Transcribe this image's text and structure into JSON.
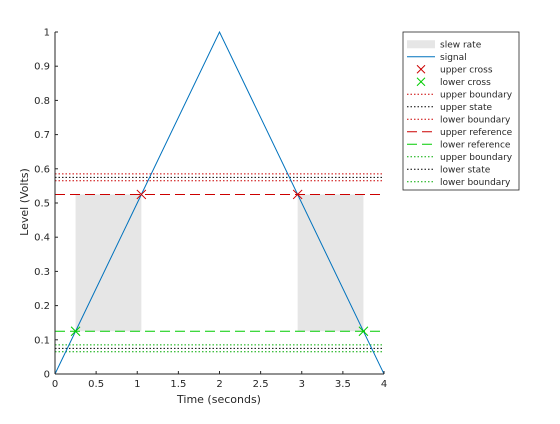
{
  "chart_data": {
    "type": "line",
    "title": "",
    "xlabel": "Time (seconds)",
    "ylabel": "Level (Volts)",
    "xlim": [
      0,
      4
    ],
    "ylim": [
      0,
      1
    ],
    "xticks": [
      0,
      0.5,
      1,
      1.5,
      2,
      2.5,
      3,
      3.5,
      4
    ],
    "xtick_labels": [
      "0",
      "0.5",
      "1",
      "1.5",
      "2",
      "2.5",
      "3",
      "3.5",
      "4"
    ],
    "yticks": [
      0,
      0.1,
      0.2,
      0.3,
      0.4,
      0.5,
      0.6,
      0.7,
      0.8,
      0.9,
      1
    ],
    "ytick_labels": [
      "0",
      "0.1",
      "0.2",
      "0.3",
      "0.4",
      "0.5",
      "0.6",
      "0.7",
      "0.8",
      "0.9",
      "1"
    ],
    "grid": false,
    "legend_position": "outside-top-right",
    "shaded_regions": [
      {
        "x0": 0.25,
        "x1": 1.05,
        "y0": 0.125,
        "y1": 0.525
      },
      {
        "x0": 2.95,
        "x1": 3.75,
        "y0": 0.125,
        "y1": 0.525
      }
    ],
    "signal": {
      "x": [
        0,
        2,
        4
      ],
      "y": [
        0,
        1,
        0
      ]
    },
    "upper_cross": {
      "x": [
        1.05,
        2.95
      ],
      "y": [
        0.525,
        0.525
      ]
    },
    "lower_cross": {
      "x": [
        0.25,
        3.75
      ],
      "y": [
        0.125,
        0.125
      ]
    },
    "hlines": [
      {
        "key": "upper_boundary",
        "y": 0.585,
        "color": "#cc0000",
        "style": "dotted"
      },
      {
        "key": "upper_state",
        "y": 0.575,
        "color": "#000000",
        "style": "dotted"
      },
      {
        "key": "lower_boundary_upper",
        "y": 0.565,
        "color": "#cc0000",
        "style": "dotted"
      },
      {
        "key": "upper_reference",
        "y": 0.525,
        "color": "#cc0000",
        "style": "dashed"
      },
      {
        "key": "lower_reference",
        "y": 0.125,
        "color": "#00cc00",
        "style": "dashed"
      },
      {
        "key": "upper_boundary_lower",
        "y": 0.085,
        "color": "#00aa00",
        "style": "dotted"
      },
      {
        "key": "lower_state",
        "y": 0.075,
        "color": "#000000",
        "style": "dotted"
      },
      {
        "key": "lower_boundary",
        "y": 0.065,
        "color": "#00aa00",
        "style": "dotted"
      }
    ],
    "legend": [
      {
        "label": "slew rate",
        "kind": "patch",
        "color": "#e6e6e6"
      },
      {
        "label": "signal",
        "kind": "line",
        "color": "#0072bd",
        "style": "solid"
      },
      {
        "label": "upper cross",
        "kind": "marker",
        "color": "#cc0000"
      },
      {
        "label": "lower cross",
        "kind": "marker",
        "color": "#00cc00"
      },
      {
        "label": "upper boundary",
        "kind": "line",
        "color": "#cc0000",
        "style": "dotted"
      },
      {
        "label": "upper state",
        "kind": "line",
        "color": "#000000",
        "style": "dotted"
      },
      {
        "label": "lower boundary",
        "kind": "line",
        "color": "#cc0000",
        "style": "dotted"
      },
      {
        "label": "upper reference",
        "kind": "line",
        "color": "#cc0000",
        "style": "dashed"
      },
      {
        "label": "lower reference",
        "kind": "line",
        "color": "#00cc00",
        "style": "dashed"
      },
      {
        "label": "upper boundary",
        "kind": "line",
        "color": "#00aa00",
        "style": "dotted"
      },
      {
        "label": "lower state",
        "kind": "line",
        "color": "#000000",
        "style": "dotted"
      },
      {
        "label": "lower boundary",
        "kind": "line",
        "color": "#00aa00",
        "style": "dotted"
      }
    ],
    "colors": {
      "signal": "#0072bd",
      "slew_fill": "#e6e6e6",
      "axis": "#262626"
    }
  }
}
